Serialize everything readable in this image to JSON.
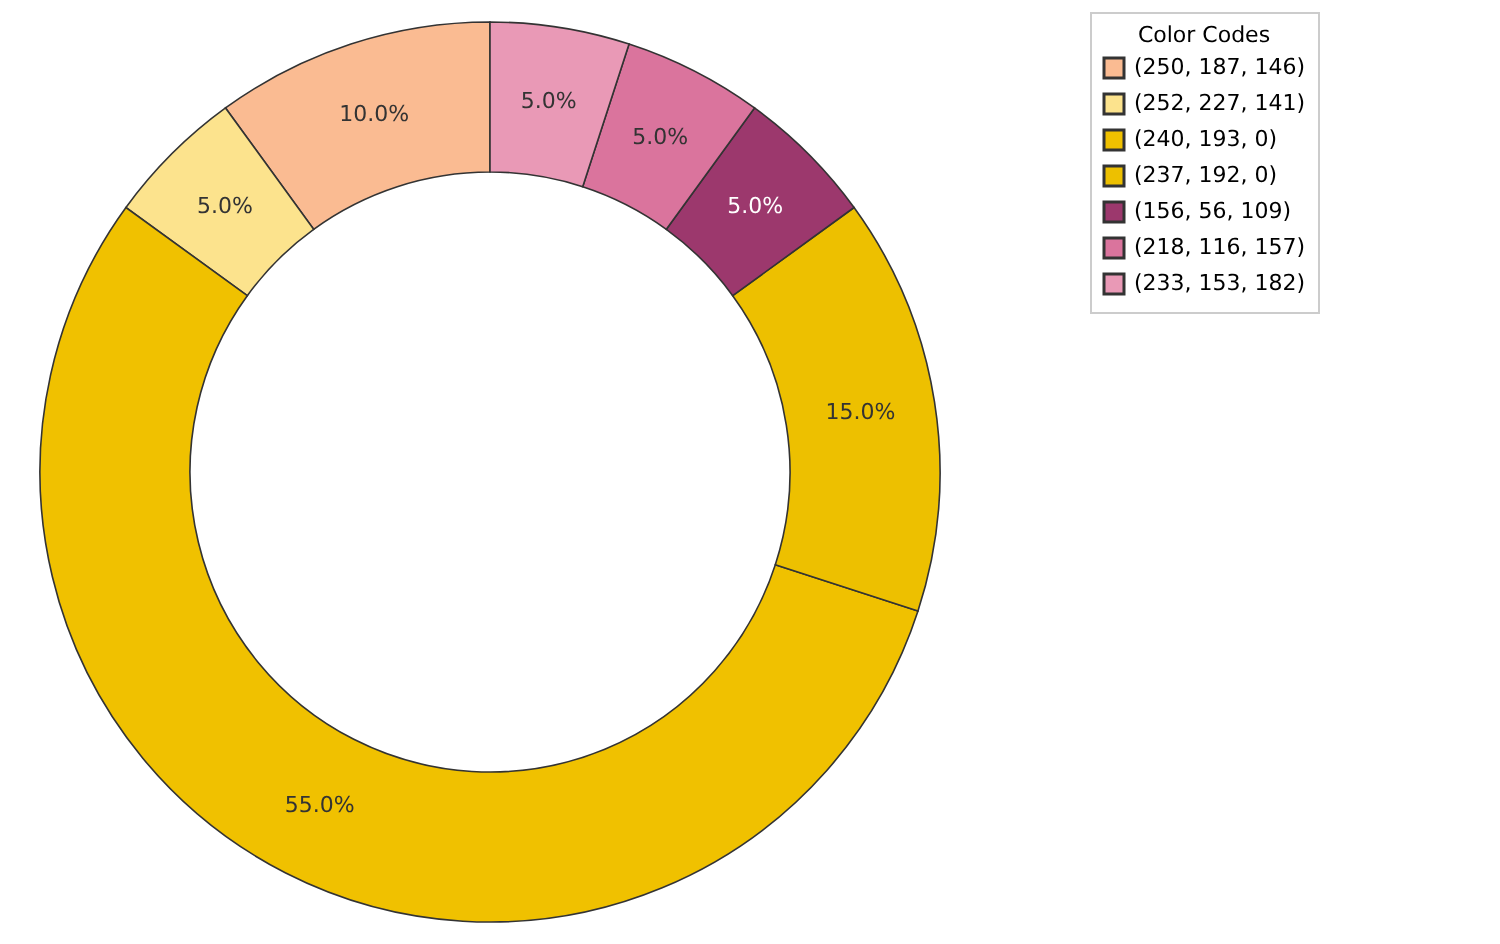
{
  "chart_data": {
    "type": "donut",
    "legend_title": "Color Codes",
    "legend": "right",
    "categories": [
      "(250, 187, 146)",
      "(252, 227, 141)",
      "(240, 193, 0)",
      "(237, 192, 0)",
      "(156, 56, 109)",
      "(218, 116, 157)",
      "(233, 153, 182)"
    ],
    "values": [
      10,
      5,
      55,
      15,
      5,
      5,
      5
    ],
    "colors": [
      "#fabb92",
      "#fce38d",
      "#f0c100",
      "#edc000",
      "#9c386d",
      "#da749d",
      "#e999b6"
    ],
    "value_labels": [
      "10.0%",
      "5.0%",
      "55.0%",
      "15.0%",
      "5.0%",
      "5.0%",
      "5.0%"
    ]
  }
}
